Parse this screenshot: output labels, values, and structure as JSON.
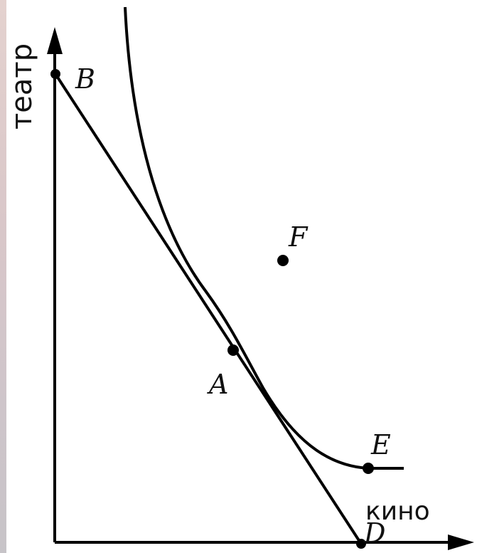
{
  "diagram": {
    "y_axis_label": "театр",
    "x_axis_label": "кино",
    "points": {
      "A": "A",
      "B": "B",
      "D": "D",
      "E": "E",
      "F": "F"
    }
  }
}
